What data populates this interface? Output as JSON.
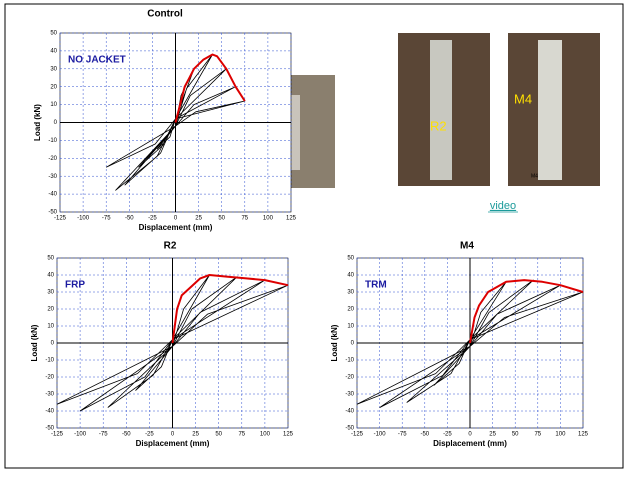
{
  "chart_data": [
    {
      "type": "hysteresis",
      "title": "Control",
      "annotation": "NO JACKET",
      "xlabel": "Displacement  (mm)",
      "ylabel": "Load (kN)",
      "xlim": [
        -125,
        125
      ],
      "ylim": [
        -50,
        50
      ],
      "xticks": [
        -125,
        -100,
        -75,
        -50,
        -25,
        0,
        25,
        50,
        75,
        100,
        125
      ],
      "yticks": [
        -50,
        -40,
        -30,
        -20,
        -10,
        0,
        10,
        20,
        30,
        40,
        50
      ],
      "grid": true,
      "series": [
        {
          "color": "#000000",
          "x": [
            -20,
            0,
            6,
            20,
            0,
            -6,
            -20,
            null,
            -40,
            0,
            12,
            40,
            0,
            -12,
            -40,
            null,
            -55,
            0,
            16,
            55,
            0,
            -16,
            -55,
            null,
            -65,
            0,
            20,
            65,
            0,
            -20,
            -65,
            null,
            -75,
            0,
            22,
            75,
            0,
            -22,
            -75
          ],
          "values": [
            -15,
            -2,
            15,
            30,
            2,
            -8,
            -15,
            null,
            -25,
            -2,
            19,
            38,
            2,
            -12,
            -25,
            null,
            -35,
            -2,
            15,
            30,
            2,
            -17,
            -35,
            null,
            -38,
            -2,
            10,
            20,
            2,
            -19,
            -38,
            null,
            -25,
            -2,
            6,
            12,
            2,
            -12,
            -25
          ]
        },
        {
          "color": "#dd0000",
          "x": [
            0,
            5,
            10,
            15,
            20,
            30,
            40,
            45,
            55,
            65,
            75
          ],
          "values": [
            0,
            10,
            20,
            25,
            30,
            35,
            38,
            37,
            30,
            20,
            12
          ]
        }
      ]
    },
    {
      "type": "hysteresis",
      "title": "R2",
      "annotation": "FRP",
      "xlabel": "Displacement (mm)",
      "ylabel": "Load (kN)",
      "xlim": [
        -125,
        125
      ],
      "ylim": [
        -50,
        50
      ],
      "xticks": [
        -125,
        -100,
        -75,
        -50,
        -25,
        0,
        25,
        50,
        75,
        100,
        125
      ],
      "yticks": [
        -50,
        -40,
        -30,
        -20,
        -10,
        0,
        10,
        20,
        30,
        40,
        50
      ],
      "grid": true,
      "series": [
        {
          "color": "#000000",
          "x": [
            -40,
            0,
            12,
            40,
            0,
            -12,
            -40,
            null,
            -70,
            0,
            21,
            70,
            0,
            -21,
            -70,
            null,
            -100,
            0,
            30,
            100,
            0,
            -30,
            -100,
            null,
            -125,
            0,
            38,
            125,
            0,
            -38,
            -125
          ],
          "values": [
            -28,
            -2,
            20,
            40,
            2,
            -14,
            -28,
            null,
            -38,
            -2,
            20,
            39,
            2,
            -19,
            -38,
            null,
            -40,
            -2,
            18,
            37,
            2,
            -20,
            -40,
            null,
            -36,
            -2,
            17,
            34,
            2,
            -18,
            -36
          ]
        },
        {
          "color": "#dd0000",
          "x": [
            0,
            5,
            10,
            20,
            30,
            40,
            60,
            80,
            100,
            125
          ],
          "values": [
            0,
            20,
            28,
            33,
            38,
            40,
            39,
            38,
            37,
            34
          ]
        }
      ]
    },
    {
      "type": "hysteresis",
      "title": "M4",
      "annotation": "TRM",
      "xlabel": "Displacement (mm)",
      "ylabel": "Load (kN)",
      "xlim": [
        -125,
        125
      ],
      "ylim": [
        -50,
        50
      ],
      "xticks": [
        -125,
        -100,
        -75,
        -50,
        -25,
        0,
        25,
        50,
        75,
        100,
        125
      ],
      "yticks": [
        -50,
        -40,
        -30,
        -20,
        -10,
        0,
        10,
        20,
        30,
        40,
        50
      ],
      "grid": true,
      "series": [
        {
          "color": "#000000",
          "x": [
            -40,
            0,
            12,
            40,
            0,
            -12,
            -40,
            null,
            -70,
            0,
            21,
            70,
            0,
            -21,
            -70,
            null,
            -100,
            0,
            30,
            100,
            0,
            -30,
            -100,
            null,
            -125,
            0,
            38,
            125,
            0,
            -38,
            -125
          ],
          "values": [
            -25,
            -2,
            18,
            36,
            2,
            -12,
            -25,
            null,
            -35,
            -2,
            18,
            37,
            2,
            -18,
            -35,
            null,
            -38,
            -2,
            17,
            34,
            2,
            -19,
            -38,
            null,
            -36,
            -2,
            15,
            30,
            2,
            -18,
            -36
          ]
        },
        {
          "color": "#dd0000",
          "x": [
            0,
            5,
            10,
            20,
            40,
            60,
            80,
            100,
            125
          ],
          "values": [
            0,
            15,
            22,
            30,
            36,
            37,
            36,
            34,
            30
          ]
        }
      ]
    }
  ],
  "photos": [
    {
      "label": "R2"
    },
    {
      "label": "M4",
      "sign": "M4"
    }
  ],
  "video_link": "video"
}
